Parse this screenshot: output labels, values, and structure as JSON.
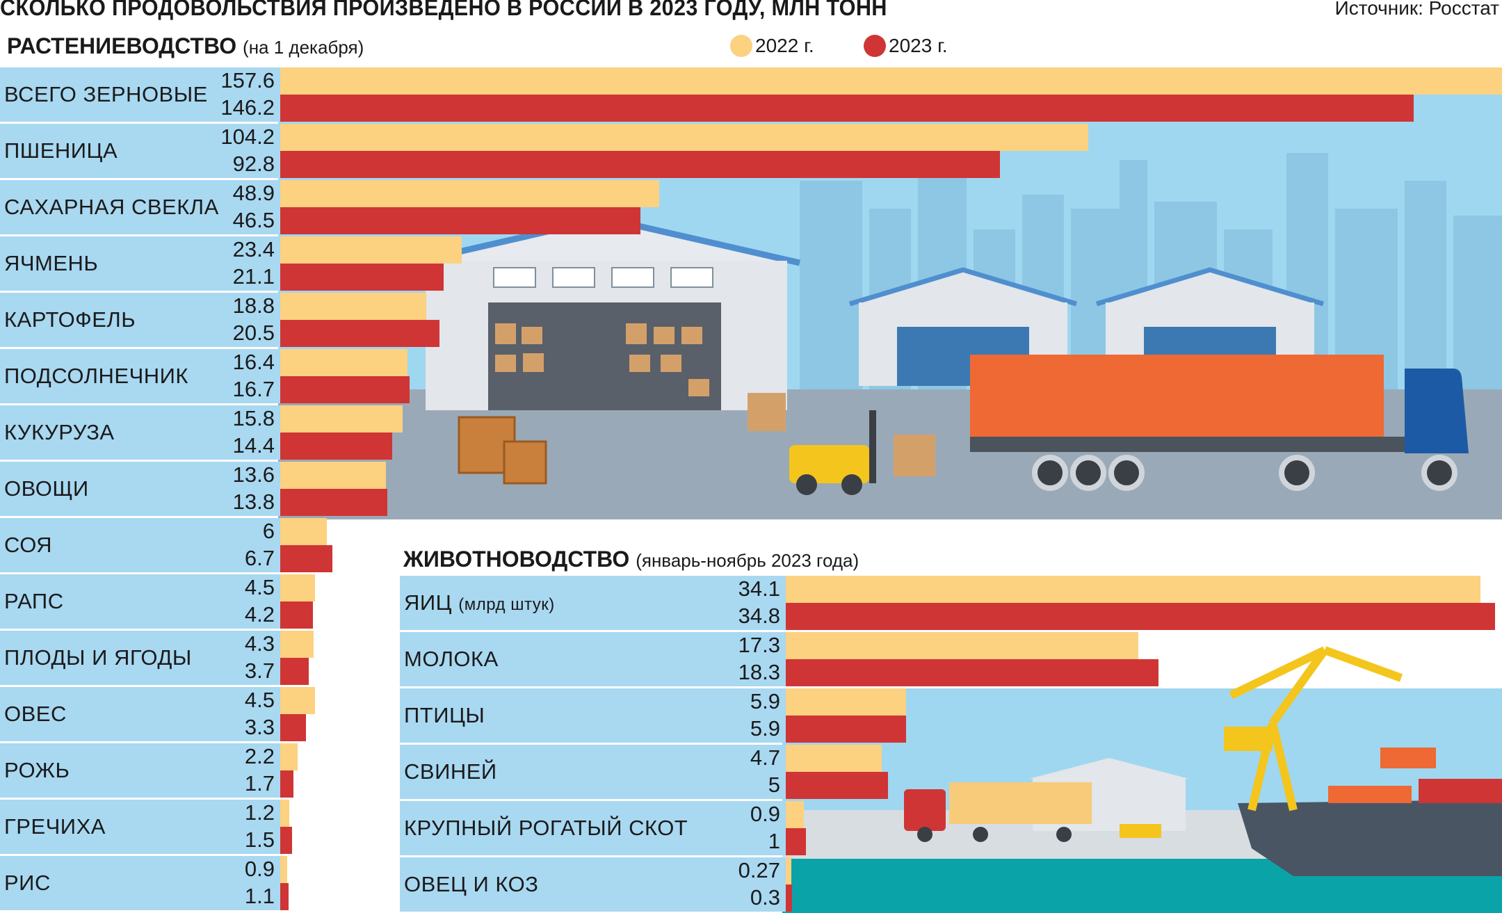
{
  "header": {
    "title": "СКОЛЬКО ПРОДОВОЛЬСТВИЯ ПРОИЗВЕДЕНО В РОССИИ В 2023 ГОДУ, МЛН ТОНН",
    "source": "Источник: Росстат"
  },
  "legend": [
    {
      "label": "2022 г.",
      "color": "#fcd180"
    },
    {
      "label": "2023 г.",
      "color": "#cf3535"
    }
  ],
  "colors": {
    "y2022": "#fcd180",
    "y2023": "#cf3535",
    "label_bg": "#a9d8f1",
    "scene_sky": "#9fd7f0"
  },
  "chart_data": [
    {
      "type": "bar",
      "orientation": "horizontal",
      "title": "РАСТЕНИЕВОДСТВО",
      "subtitle": "(на 1 декабря)",
      "series": [
        {
          "name": "2022 г.",
          "values": [
            157.6,
            104.2,
            48.9,
            23.4,
            18.8,
            16.4,
            15.8,
            13.6,
            6,
            4.5,
            4.3,
            4.5,
            2.2,
            1.2,
            0.9
          ],
          "labels": [
            "157.6",
            "104.2",
            "48.9",
            "23.4",
            "18.8",
            "16.4",
            "15.8",
            "13.6",
            "6",
            "4.5",
            "4.3",
            "4.5",
            "2.2",
            "1.2",
            "0.9"
          ]
        },
        {
          "name": "2023 г.",
          "values": [
            146.2,
            92.8,
            46.5,
            21.1,
            20.5,
            16.7,
            14.4,
            13.8,
            6.7,
            4.2,
            3.7,
            3.3,
            1.7,
            1.5,
            1.1
          ],
          "labels": [
            "146.2",
            "92.8",
            "46.5",
            "21.1",
            "20.5",
            "16.7",
            "14.4",
            "13.8",
            "6.7",
            "4.2",
            "3.7",
            "3.3",
            "1.7",
            "1.5",
            "1.1"
          ]
        }
      ],
      "categories": [
        "ВСЕГО ЗЕРНОВЫЕ",
        "ПШЕНИЦА",
        "САХАРНАЯ СВЕКЛА",
        "ЯЧМЕНЬ",
        "КАРТОФЕЛЬ",
        "ПОДСОЛНЕЧНИК",
        "КУКУРУЗА",
        "ОВОЩИ",
        "СОЯ",
        "РАПС",
        "ПЛОДЫ И ЯГОДЫ",
        "ОВЕС",
        "РОЖЬ",
        "ГРЕЧИХА",
        "РИС"
      ],
      "xlim": [
        0,
        157.6
      ]
    },
    {
      "type": "bar",
      "orientation": "horizontal",
      "title": "ЖИВОТНОВОДСТВО",
      "subtitle": "(январь-ноябрь 2023 года)",
      "categories": [
        "ЯИЦ",
        "МОЛОКА",
        "ПТИЦЫ",
        "СВИНЕЙ",
        "КРУПНЫЙ РОГАТЫЙ СКОТ",
        "ОВЕЦ И КОЗ"
      ],
      "category_notes": [
        "(млрд штук)",
        "",
        "",
        "",
        "",
        ""
      ],
      "series": [
        {
          "name": "2022 г.",
          "values": [
            34.1,
            17.3,
            5.9,
            4.7,
            0.9,
            0.27
          ],
          "labels": [
            "34.1",
            "17.3",
            "5.9",
            "4.7",
            "0.9",
            "0.27"
          ]
        },
        {
          "name": "2023 г.",
          "values": [
            34.8,
            18.3,
            5.9,
            5,
            1,
            0.3
          ],
          "labels": [
            "34.8",
            "18.3",
            "5.9",
            "5",
            "1",
            "0.3"
          ]
        }
      ],
      "xlim": [
        0,
        34.8
      ]
    }
  ]
}
